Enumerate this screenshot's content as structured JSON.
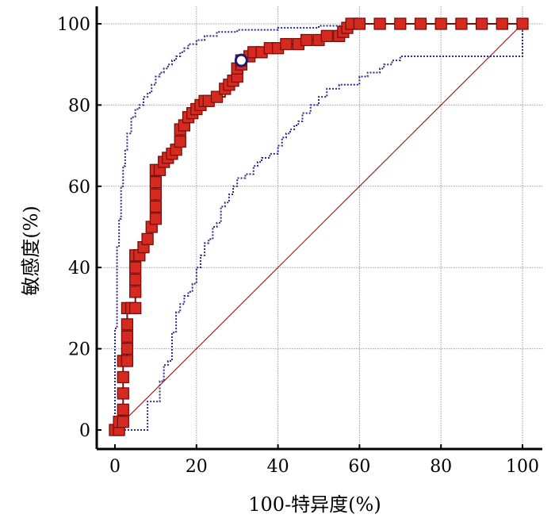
{
  "chart_data": {
    "type": "line",
    "title": "",
    "xlabel": "100-特异度(%)",
    "ylabel": "敏感度(%)",
    "xlim": [
      0,
      100
    ],
    "ylim": [
      0,
      100
    ],
    "xticks": [
      0,
      20,
      40,
      60,
      80,
      100
    ],
    "yticks": [
      0,
      20,
      40,
      60,
      80,
      100
    ],
    "grid": true,
    "legend": "none",
    "colors": {
      "roc": "#d42a20",
      "roc_edge": "#7a0f0a",
      "ci": "#2a2a8c",
      "reference": "#a02020",
      "grid": "#9a9a9a"
    },
    "series": [
      {
        "role": "roc-curve",
        "points": [
          [
            0,
            0
          ],
          [
            1,
            0
          ],
          [
            1,
            2
          ],
          [
            2,
            2
          ],
          [
            2,
            5
          ],
          [
            2,
            9
          ],
          [
            2,
            13
          ],
          [
            2,
            17
          ],
          [
            3,
            17
          ],
          [
            3,
            20
          ],
          [
            3,
            23
          ],
          [
            3,
            26
          ],
          [
            3,
            30
          ],
          [
            4,
            30
          ],
          [
            5,
            30
          ],
          [
            5,
            34
          ],
          [
            5,
            37
          ],
          [
            5,
            40
          ],
          [
            5,
            43
          ],
          [
            6,
            43
          ],
          [
            7,
            45
          ],
          [
            8,
            47
          ],
          [
            9,
            50
          ],
          [
            10,
            52
          ],
          [
            10,
            55
          ],
          [
            10,
            58
          ],
          [
            10,
            61
          ],
          [
            10,
            64
          ],
          [
            11,
            64
          ],
          [
            12,
            66
          ],
          [
            13,
            67
          ],
          [
            14,
            68
          ],
          [
            15,
            69
          ],
          [
            16,
            71
          ],
          [
            16,
            74
          ],
          [
            17,
            75
          ],
          [
            18,
            77
          ],
          [
            19,
            78
          ],
          [
            20,
            79
          ],
          [
            21,
            80
          ],
          [
            22,
            81
          ],
          [
            23,
            81
          ],
          [
            25,
            82
          ],
          [
            27,
            84
          ],
          [
            28,
            85
          ],
          [
            29,
            86
          ],
          [
            30,
            87
          ],
          [
            30,
            89
          ],
          [
            31,
            90
          ],
          [
            31,
            91
          ],
          [
            33,
            92
          ],
          [
            34,
            93
          ],
          [
            36,
            93
          ],
          [
            38,
            94
          ],
          [
            40,
            94
          ],
          [
            42,
            95
          ],
          [
            45,
            95
          ],
          [
            47,
            96
          ],
          [
            50,
            96
          ],
          [
            52,
            97
          ],
          [
            55,
            97
          ],
          [
            56,
            98
          ],
          [
            57,
            99
          ],
          [
            58,
            100
          ],
          [
            60,
            100
          ],
          [
            65,
            100
          ],
          [
            70,
            100
          ],
          [
            75,
            100
          ],
          [
            80,
            100
          ],
          [
            85,
            100
          ],
          [
            90,
            100
          ],
          [
            95,
            100
          ],
          [
            100,
            100
          ]
        ]
      },
      {
        "role": "upper-confidence-bound",
        "points": [
          [
            0,
            0
          ],
          [
            0,
            25
          ],
          [
            0.5,
            45
          ],
          [
            1,
            52
          ],
          [
            1.5,
            60
          ],
          [
            2,
            65
          ],
          [
            2.5,
            69
          ],
          [
            3,
            73
          ],
          [
            4,
            77
          ],
          [
            5,
            79
          ],
          [
            6,
            80
          ],
          [
            7,
            82
          ],
          [
            8,
            83
          ],
          [
            9,
            85
          ],
          [
            10,
            87
          ],
          [
            11,
            88
          ],
          [
            12,
            89
          ],
          [
            13,
            90
          ],
          [
            14,
            91
          ],
          [
            15,
            92
          ],
          [
            16,
            93
          ],
          [
            17,
            94
          ],
          [
            18,
            95
          ],
          [
            20,
            96
          ],
          [
            22,
            97
          ],
          [
            25,
            98
          ],
          [
            30,
            98.5
          ],
          [
            40,
            99
          ],
          [
            50,
            99.5
          ],
          [
            57,
            100
          ],
          [
            100,
            100
          ]
        ]
      },
      {
        "role": "lower-confidence-bound",
        "points": [
          [
            0,
            0
          ],
          [
            8,
            0
          ],
          [
            8,
            7
          ],
          [
            10,
            7
          ],
          [
            11,
            12
          ],
          [
            12,
            16
          ],
          [
            13,
            17
          ],
          [
            14,
            24
          ],
          [
            15,
            29
          ],
          [
            16,
            31
          ],
          [
            17,
            33
          ],
          [
            18,
            34
          ],
          [
            19,
            36
          ],
          [
            20,
            37
          ],
          [
            20,
            40
          ],
          [
            21,
            43
          ],
          [
            22,
            46
          ],
          [
            23,
            47
          ],
          [
            24,
            50
          ],
          [
            25,
            51
          ],
          [
            26,
            55
          ],
          [
            27,
            56
          ],
          [
            28,
            58
          ],
          [
            29,
            60
          ],
          [
            30,
            62
          ],
          [
            32,
            63
          ],
          [
            34,
            65
          ],
          [
            35,
            66
          ],
          [
            36,
            67
          ],
          [
            38,
            68
          ],
          [
            40,
            70
          ],
          [
            41,
            72
          ],
          [
            42,
            73
          ],
          [
            43,
            74
          ],
          [
            44,
            75
          ],
          [
            45,
            76
          ],
          [
            46,
            78
          ],
          [
            48,
            80
          ],
          [
            50,
            82
          ],
          [
            52,
            84
          ],
          [
            55,
            85
          ],
          [
            58,
            85
          ],
          [
            60,
            87
          ],
          [
            62,
            88
          ],
          [
            65,
            89
          ],
          [
            66,
            90
          ],
          [
            68,
            91
          ],
          [
            70,
            92
          ],
          [
            75,
            92
          ],
          [
            80,
            92
          ],
          [
            90,
            92
          ],
          [
            100,
            92
          ],
          [
            100,
            100
          ]
        ]
      },
      {
        "role": "reference-line",
        "points": [
          [
            0,
            0
          ],
          [
            100,
            100
          ]
        ]
      }
    ],
    "optimal_point": [
      31,
      91
    ]
  }
}
